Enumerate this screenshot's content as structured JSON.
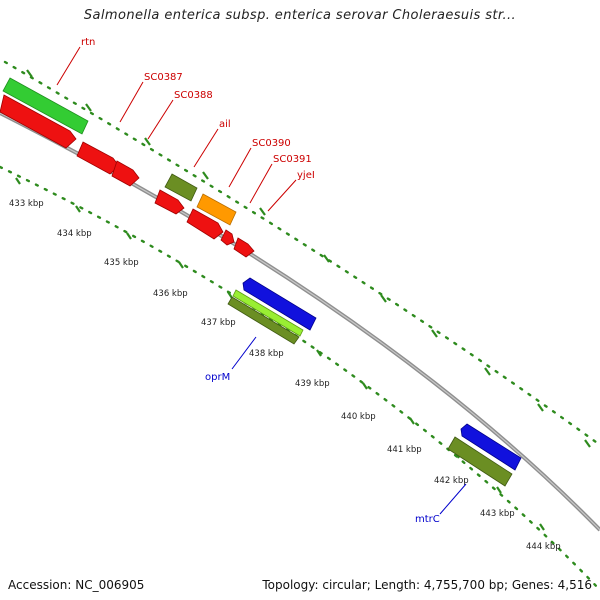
{
  "title": "Salmonella enterica subsp. enterica serovar Choleraesuis str...",
  "footer": {
    "accession": "Accession: NC_006905",
    "stats": "Topology: circular; Length: 4,755,700 bp; Genes: 4,516"
  },
  "tick_labels": [
    "433 kbp",
    "434 kbp",
    "435 kbp",
    "436 kbp",
    "437 kbp",
    "438 kbp",
    "439 kbp",
    "440 kbp",
    "441 kbp",
    "442 kbp",
    "443 kbp",
    "444 kbp"
  ],
  "gene_labels": {
    "forward": [
      "rtn",
      "SC0387",
      "SC0388",
      "ail",
      "SC0390",
      "SC0391",
      "yjeI"
    ],
    "reverse": [
      "oprM",
      "mtrC"
    ]
  },
  "colors": {
    "backbone": "#8f8f8f",
    "tick_green": "#2e8b1e",
    "label_red": "#cc0000",
    "label_blue": "#0000cc",
    "gene_red": "#ee1111",
    "gene_green": "#33cc33",
    "gene_olive": "#6b8e23",
    "gene_orange": "#ff9900",
    "gene_blue": "#1111dd",
    "gene_lime": "#99ee33"
  }
}
